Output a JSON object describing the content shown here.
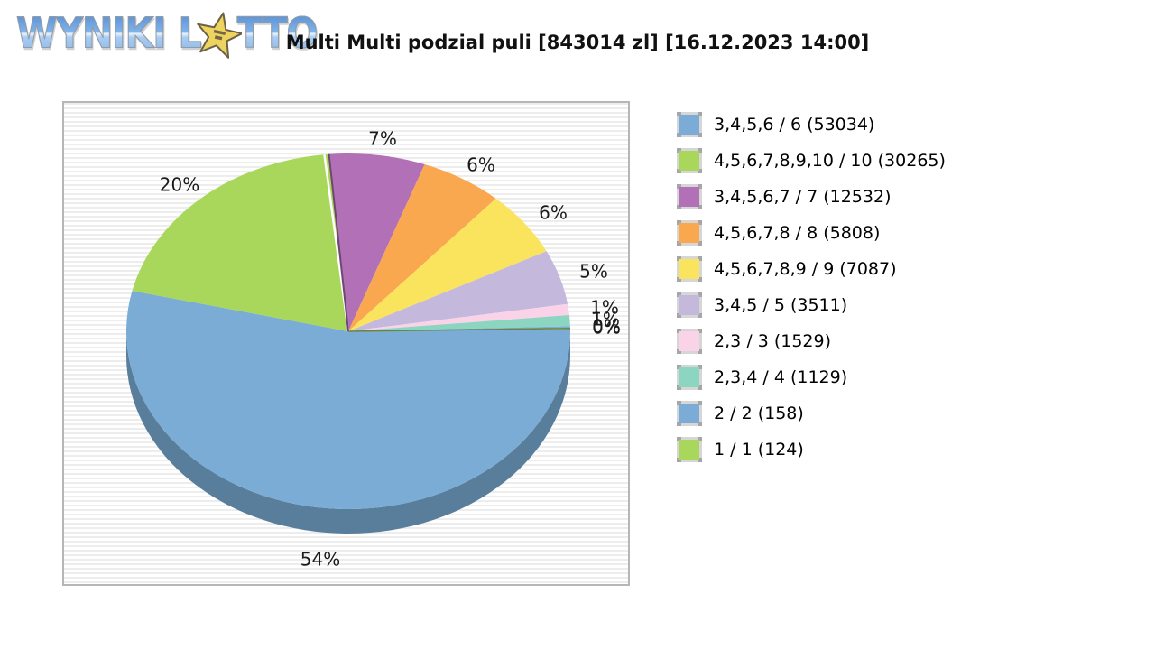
{
  "logo": {
    "word1": "WYNIKI",
    "word2_prefix": "L",
    "word2_suffix": "TTO"
  },
  "title": "Multi Multi podzial puli [843014 zl] [16.12.2023 14:00]",
  "colors": {
    "page_bg": "#ffffff",
    "panel_stripe": "#ededed",
    "panel_border": "#b6b6b6",
    "label_text": "#1a1a1a",
    "logo_blue": "#7eb2e9",
    "star_yellow": "#eed45e"
  },
  "chart_data": {
    "type": "pie",
    "style": "3d",
    "title": "Multi Multi podzial puli [843014 zl] [16.12.2023 14:00]",
    "total_pool": "843014 zl",
    "draw_datetime": "16.12.2023 14:00",
    "start_angle_deg": -5,
    "legend_position": "right",
    "pie_order": [
      2,
      3,
      4,
      5,
      6,
      7,
      8,
      9,
      0,
      1
    ],
    "slices": [
      {
        "label": "3,4,5,6 / 6",
        "count": 53034,
        "pct": 54,
        "pct_label": "54%",
        "legend_label": "3,4,5,6 / 6 (53034)",
        "color": "#7AACD6"
      },
      {
        "label": "4,5,6,7,8,9,10 / 10",
        "count": 30265,
        "pct": 20,
        "pct_label": "20%",
        "legend_label": "4,5,6,7,8,9,10 / 10 (30265)",
        "color": "#A9D75B"
      },
      {
        "label": "3,4,5,6,7 / 7",
        "count": 12532,
        "pct": 7,
        "pct_label": "7%",
        "legend_label": "3,4,5,6,7 / 7 (12532)",
        "color": "#B271B7"
      },
      {
        "label": "4,5,6,7,8 / 8",
        "count": 5808,
        "pct": 6,
        "pct_label": "6%",
        "legend_label": "4,5,6,7,8 / 8 (5808)",
        "color": "#FAA84F"
      },
      {
        "label": "4,5,6,7,8,9 / 9",
        "count": 7087,
        "pct": 6,
        "pct_label": "6%",
        "legend_label": "4,5,6,7,8,9 / 9 (7087)",
        "color": "#FBE45D"
      },
      {
        "label": "3,4,5 / 5",
        "count": 3511,
        "pct": 5,
        "pct_label": "5%",
        "legend_label": "3,4,5 / 5 (3511)",
        "color": "#C4B9DC"
      },
      {
        "label": "2,3 / 3",
        "count": 1529,
        "pct": 1,
        "pct_label": "1%",
        "legend_label": "2,3 / 3 (1529)",
        "color": "#FBD3E9"
      },
      {
        "label": "2,3,4 / 4",
        "count": 1129,
        "pct": 1,
        "pct_label": "1%",
        "legend_label": "2,3,4 / 4 (1129)",
        "color": "#8CD5C1"
      },
      {
        "label": "2 / 2",
        "count": 158,
        "pct": 0,
        "draw_pct": 0.14,
        "pct_label": "0%",
        "legend_label": "2 / 2 (158)",
        "color": "#7AACD6"
      },
      {
        "label": "1 / 1",
        "count": 124,
        "pct": 0,
        "draw_pct": 0.11,
        "pct_label": "0%",
        "legend_label": "1 / 1 (124)",
        "color": "#A9D75B"
      }
    ]
  }
}
